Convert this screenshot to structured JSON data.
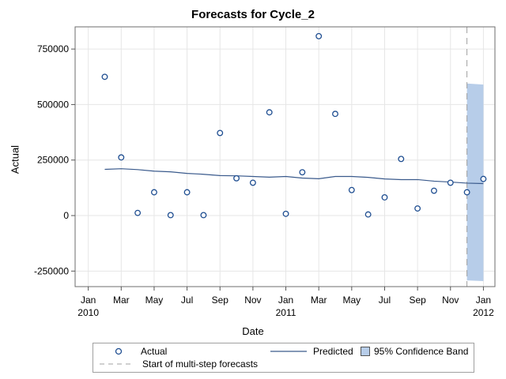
{
  "title": "Forecasts for Cycle_2",
  "ylabel": "Actual",
  "xlabel": "Date",
  "legend": {
    "actual": "Actual",
    "predicted": "Predicted",
    "band": "95% Confidence Band",
    "start": "Start of multi-step forecasts"
  },
  "colors": {
    "actual": "#1f4e91",
    "predicted": "#3a5a8c",
    "band": "#b7cde9",
    "start": "#a0a0a0",
    "grid": "#e6e6e6"
  },
  "chart_data": {
    "type": "scatter",
    "title": "Forecasts for Cycle_2",
    "xlabel": "Date",
    "ylabel": "Actual",
    "ylim": [
      -320000,
      850000
    ],
    "yticks": [
      -250000,
      0,
      250000,
      500000,
      750000
    ],
    "ytick_labels": [
      "-250000",
      "0",
      "250000",
      "500000",
      "750000"
    ],
    "xlim": [
      -0.8,
      24.7
    ],
    "xticks": [
      0,
      2,
      4,
      6,
      8,
      10,
      12,
      14,
      16,
      18,
      20,
      22,
      24
    ],
    "xtick_labels": [
      "Jan",
      "Mar",
      "May",
      "Jul",
      "Sep",
      "Nov",
      "Jan",
      "Mar",
      "May",
      "Jul",
      "Sep",
      "Nov",
      "Jan"
    ],
    "xtick_years": [
      "2010",
      "",
      "",
      "",
      "",
      "",
      "2011",
      "",
      "",
      "",
      "",
      "",
      "2012"
    ],
    "grid": true,
    "start_of_forecast": 23,
    "series": [
      {
        "name": "Actual",
        "x": [
          1,
          2,
          3,
          4,
          5,
          6,
          7,
          8,
          9,
          10,
          11,
          12,
          13,
          14,
          15,
          16,
          17,
          18,
          19,
          20,
          21,
          22,
          23,
          24
        ],
        "values": [
          625000,
          262000,
          12000,
          105000,
          2000,
          105000,
          2000,
          372000,
          168000,
          148000,
          465000,
          8000,
          195000,
          808000,
          458000,
          115000,
          5000,
          82000,
          255000,
          32000,
          112000,
          148000,
          105000,
          165000
        ]
      },
      {
        "name": "Predicted",
        "x": [
          1,
          2,
          3,
          4,
          5,
          6,
          7,
          8,
          9,
          10,
          11,
          12,
          13,
          14,
          15,
          16,
          17,
          18,
          19,
          20,
          21,
          22,
          23,
          24
        ],
        "values": [
          208000,
          211000,
          207000,
          200000,
          197000,
          190000,
          186000,
          180000,
          179000,
          176000,
          173000,
          176000,
          169000,
          166000,
          176000,
          176000,
          172000,
          165000,
          162000,
          162000,
          155000,
          151000,
          146000,
          144000
        ]
      },
      {
        "name": "95% Confidence Band",
        "x": [
          23,
          24
        ],
        "lower": [
          -292000,
          -295000
        ],
        "upper": [
          595000,
          590000
        ]
      }
    ]
  }
}
